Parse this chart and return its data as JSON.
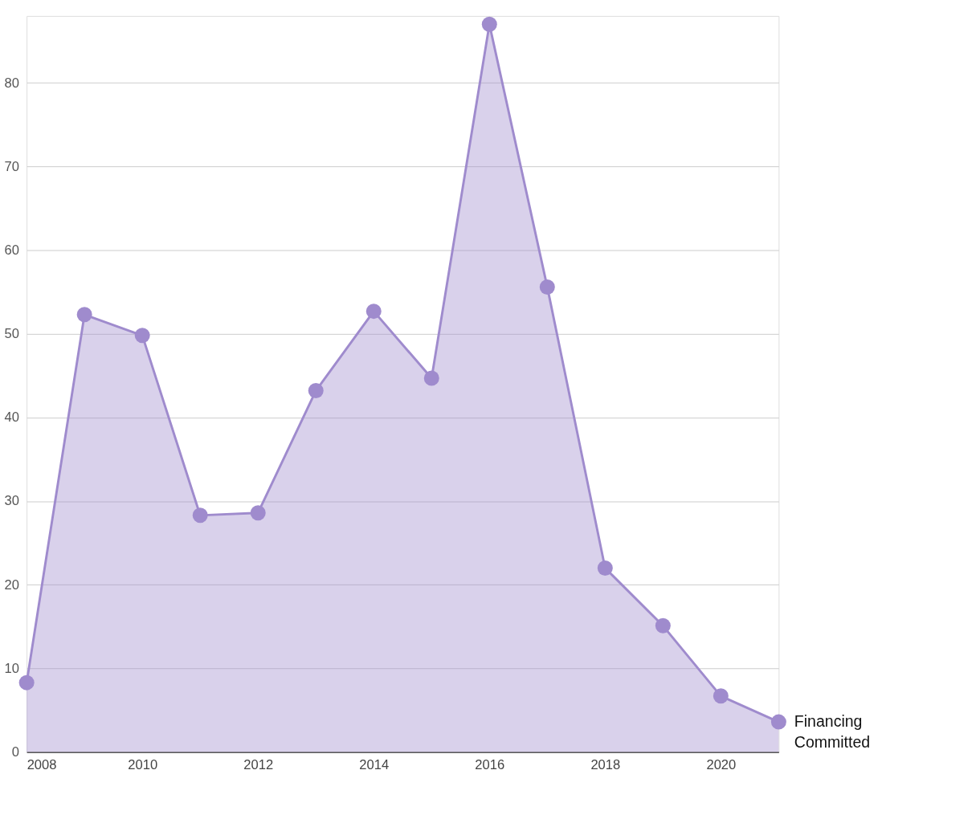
{
  "chart_data": {
    "type": "area",
    "x": [
      2008,
      2009,
      2010,
      2011,
      2012,
      2013,
      2014,
      2015,
      2016,
      2017,
      2018,
      2019,
      2020,
      2021
    ],
    "series": [
      {
        "name": "Financing Committed",
        "color": "#9f8bcd",
        "values": [
          8.3,
          52.3,
          49.8,
          28.3,
          28.6,
          43.2,
          52.7,
          44.7,
          87.0,
          55.6,
          22.0,
          15.1,
          6.7,
          3.6
        ]
      }
    ],
    "xlim": [
      2008,
      2021
    ],
    "xticks": [
      2008,
      2010,
      2012,
      2014,
      2016,
      2018,
      2020
    ],
    "ylim": [
      0,
      88
    ],
    "yticks": [
      0,
      10,
      20,
      30,
      40,
      50,
      60,
      70,
      80
    ],
    "grid": "y",
    "marker": "circle",
    "line_style": "solid",
    "legend": false
  }
}
